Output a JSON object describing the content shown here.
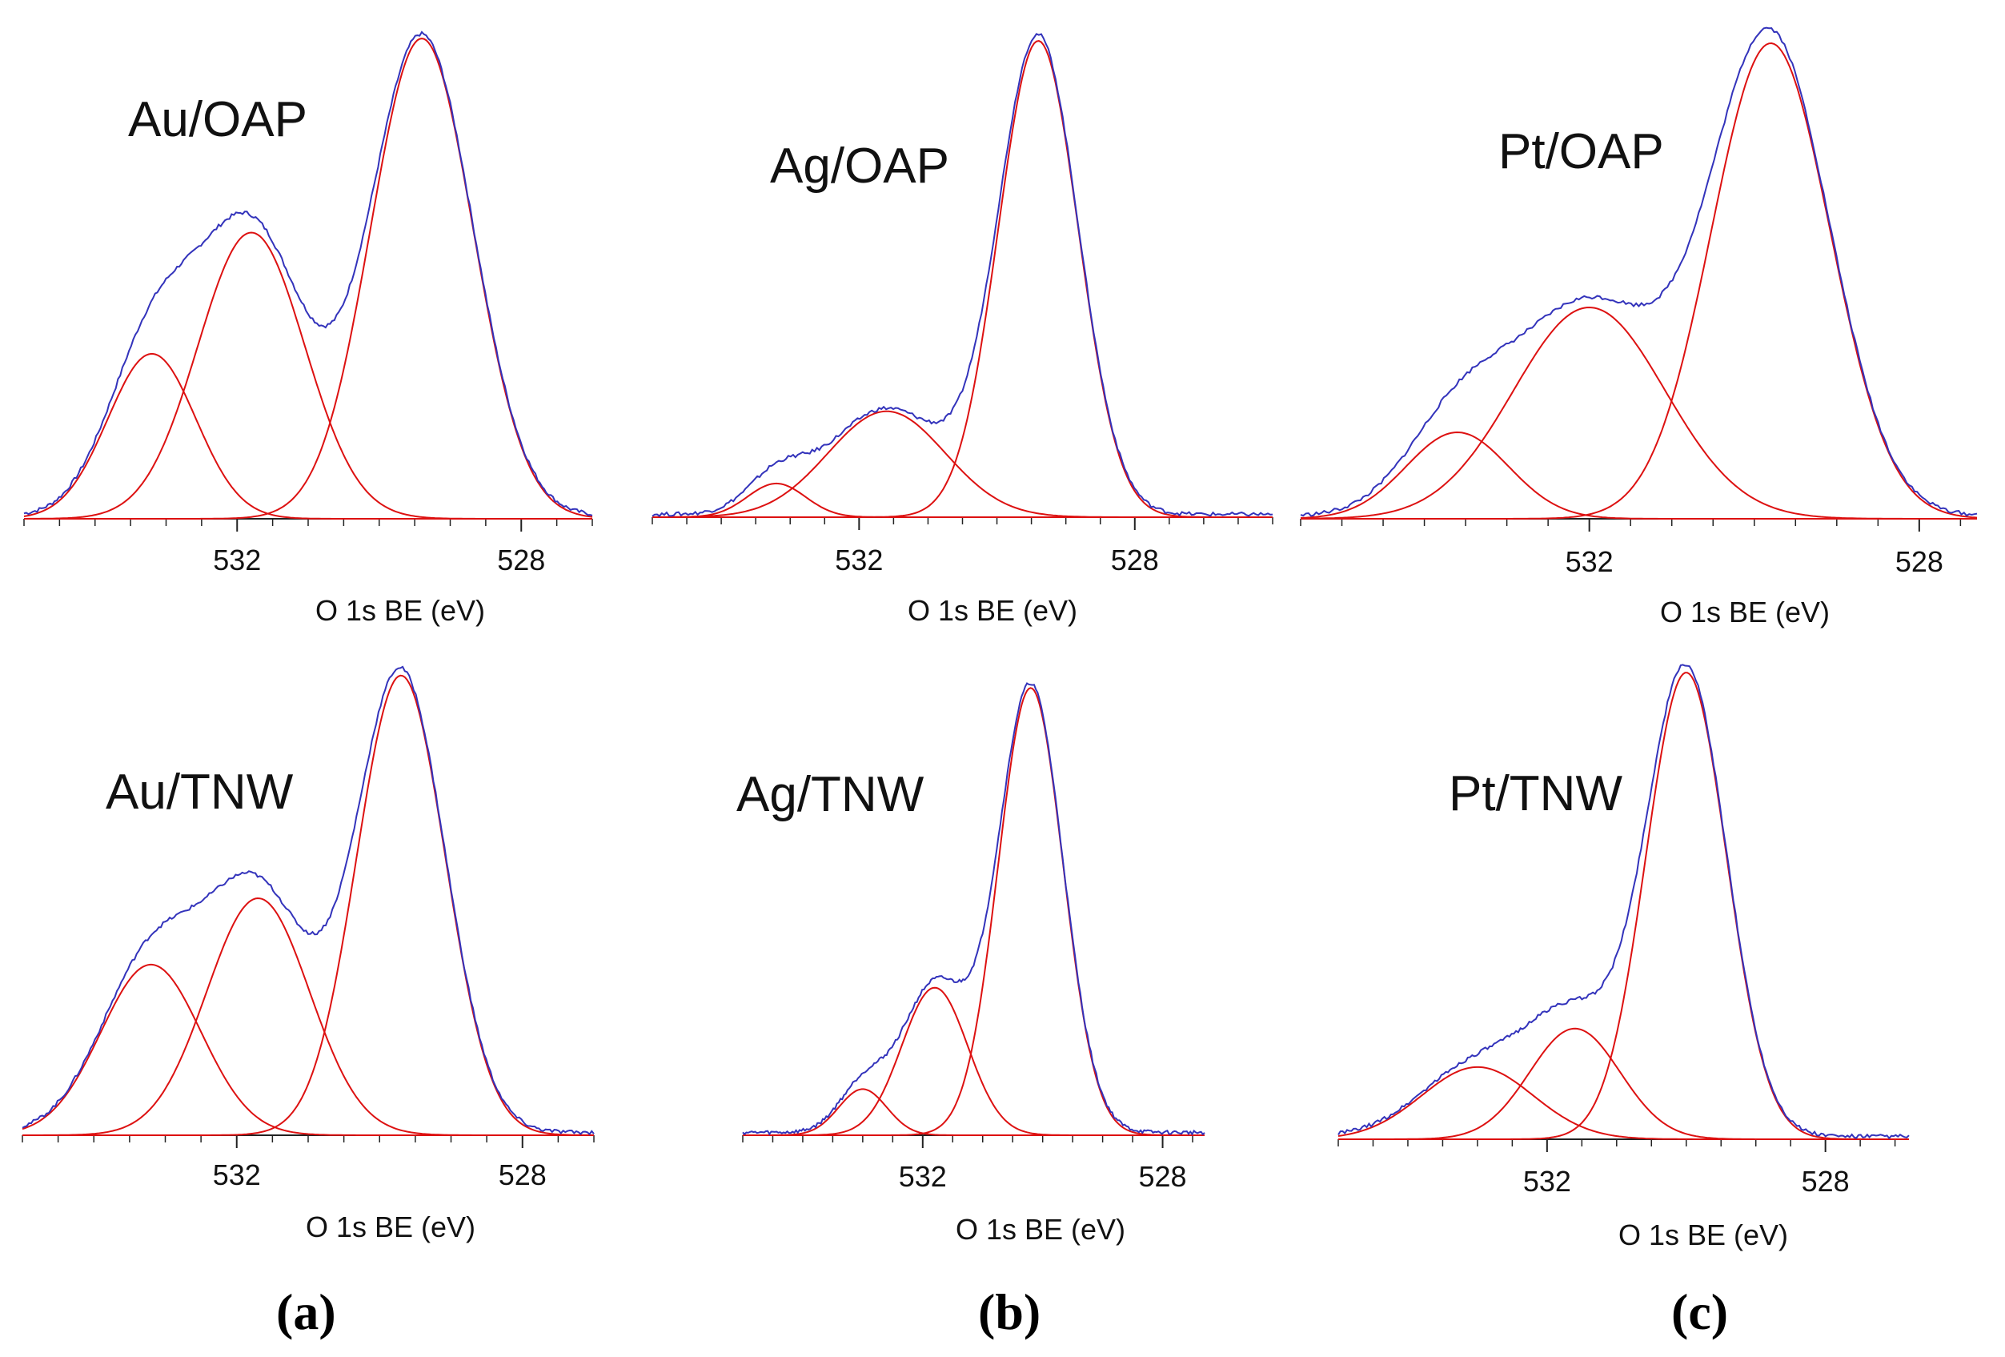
{
  "figure": {
    "panel_labels": {
      "a": "(a)",
      "b": "(b)",
      "c": "(c)"
    }
  },
  "chart_data": [
    {
      "id": "au-oap",
      "type": "line",
      "title": "Au/OAP",
      "xlabel": "O 1s BE (eV)",
      "ylabel": "",
      "x_range": [
        535.0,
        527.0
      ],
      "xticks": [
        532,
        528
      ],
      "x_reversed": true,
      "components": [
        {
          "center": 533.2,
          "sigma": 0.62,
          "height": 0.34
        },
        {
          "center": 531.8,
          "sigma": 0.75,
          "height": 0.59
        },
        {
          "center": 529.4,
          "sigma": 0.72,
          "height": 0.99
        }
      ],
      "envelope_color": "#3333bb",
      "component_color": "#dd1111"
    },
    {
      "id": "ag-oap",
      "type": "line",
      "title": "Ag/OAP",
      "xlabel": "O 1s BE (eV)",
      "ylabel": "",
      "x_range": [
        535.0,
        526.0
      ],
      "xticks": [
        532,
        528
      ],
      "x_reversed": true,
      "components": [
        {
          "center": 533.2,
          "sigma": 0.42,
          "height": 0.07
        },
        {
          "center": 531.6,
          "sigma": 0.85,
          "height": 0.22
        },
        {
          "center": 529.4,
          "sigma": 0.58,
          "height": 0.99
        }
      ],
      "envelope_color": "#3333bb",
      "component_color": "#dd1111"
    },
    {
      "id": "pt-oap",
      "type": "line",
      "title": "Pt/OAP",
      "xlabel": "O 1s BE (eV)",
      "ylabel": "",
      "x_range": [
        535.5,
        527.3
      ],
      "xticks": [
        532,
        528
      ],
      "x_reversed": true,
      "components": [
        {
          "center": 533.6,
          "sigma": 0.62,
          "height": 0.18
        },
        {
          "center": 532.0,
          "sigma": 0.92,
          "height": 0.44
        },
        {
          "center": 529.8,
          "sigma": 0.72,
          "height": 0.99
        }
      ],
      "envelope_color": "#3333bb",
      "component_color": "#dd1111"
    },
    {
      "id": "au-tnw",
      "type": "line",
      "title": "Au/TNW",
      "xlabel": "O 1s BE (eV)",
      "ylabel": "",
      "x_range": [
        535.0,
        527.0
      ],
      "xticks": [
        532,
        528
      ],
      "x_reversed": true,
      "components": [
        {
          "center": 533.2,
          "sigma": 0.7,
          "height": 0.36
        },
        {
          "center": 531.7,
          "sigma": 0.72,
          "height": 0.5
        },
        {
          "center": 529.7,
          "sigma": 0.62,
          "height": 0.97
        }
      ],
      "envelope_color": "#3333bb",
      "component_color": "#dd1111"
    },
    {
      "id": "ag-tnw",
      "type": "line",
      "title": "Ag/TNW",
      "xlabel": "O 1s BE (eV)",
      "ylabel": "",
      "x_range": [
        535.0,
        527.3
      ],
      "xticks": [
        532,
        528
      ],
      "x_reversed": true,
      "components": [
        {
          "center": 533.0,
          "sigma": 0.4,
          "height": 0.1
        },
        {
          "center": 531.8,
          "sigma": 0.55,
          "height": 0.32
        },
        {
          "center": 530.2,
          "sigma": 0.54,
          "height": 0.97
        }
      ],
      "envelope_color": "#3333bb",
      "component_color": "#dd1111"
    },
    {
      "id": "pt-tnw",
      "type": "line",
      "title": "Pt/TNW",
      "xlabel": "O 1s BE (eV)",
      "ylabel": "",
      "x_range": [
        535.0,
        526.8
      ],
      "xticks": [
        532,
        528
      ],
      "x_reversed": true,
      "components": [
        {
          "center": 533.0,
          "sigma": 0.8,
          "height": 0.15
        },
        {
          "center": 531.6,
          "sigma": 0.65,
          "height": 0.23
        },
        {
          "center": 530.0,
          "sigma": 0.58,
          "height": 0.97
        }
      ],
      "envelope_color": "#3333bb",
      "component_color": "#dd1111"
    }
  ]
}
